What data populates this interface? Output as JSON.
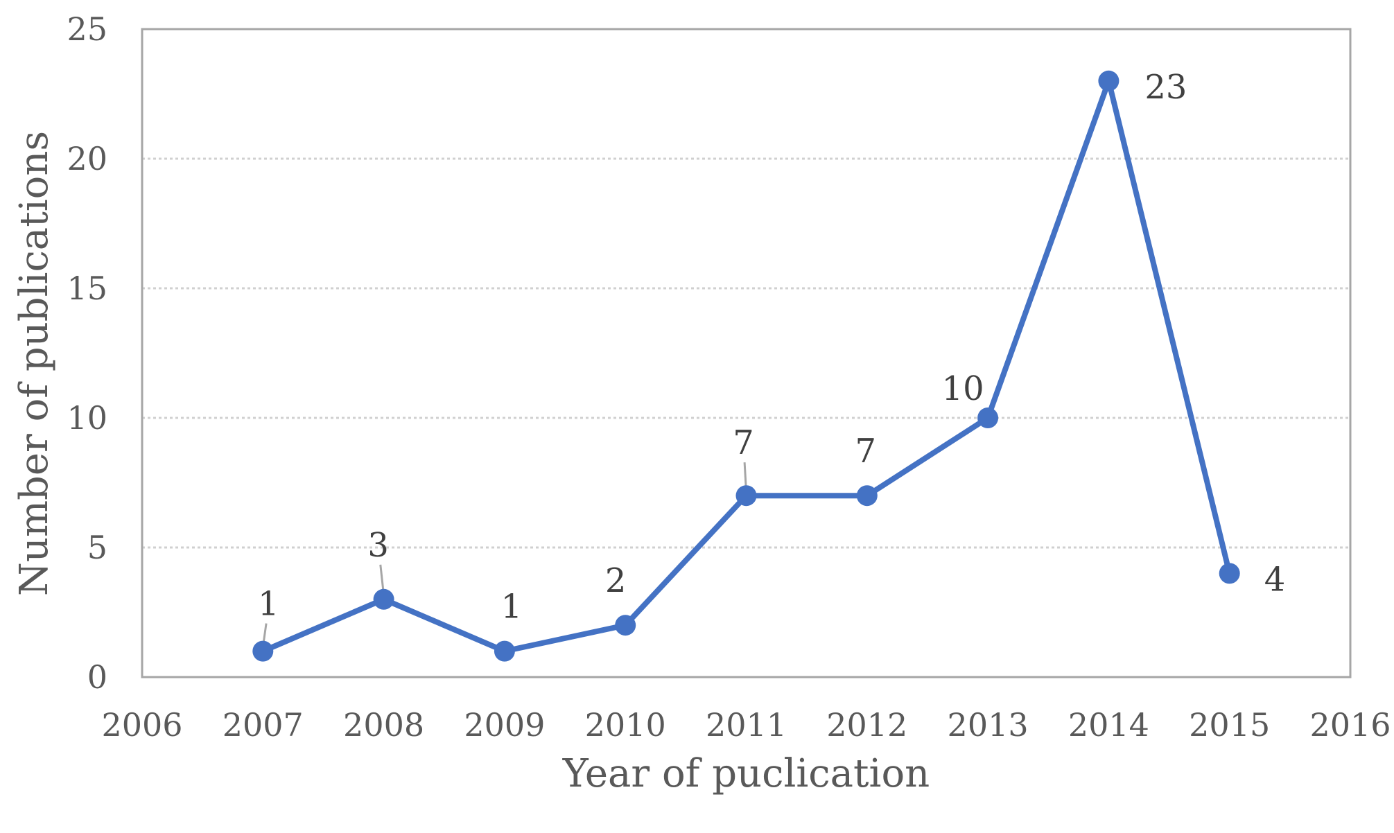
{
  "chart_data": {
    "type": "scatter",
    "mode": "lines+markers",
    "xlabel": "Year of puclication",
    "ylabel": "Number of publications",
    "xlim": [
      2006,
      2016
    ],
    "ylim": [
      0,
      25
    ],
    "x_ticks": [
      2006,
      2007,
      2008,
      2009,
      2010,
      2011,
      2012,
      2013,
      2014,
      2015,
      2016
    ],
    "y_ticks": [
      0,
      5,
      10,
      15,
      20,
      25
    ],
    "grid": "horizontal dotted",
    "legend": "none",
    "series": [
      {
        "x": [
          2007,
          2008,
          2009,
          2010,
          2011,
          2012,
          2013,
          2014,
          2015
        ],
        "y": [
          1,
          3,
          1,
          2,
          7,
          7,
          10,
          23,
          4
        ],
        "labels": [
          "1",
          "3",
          "1",
          "2",
          "7",
          "7",
          "10",
          "23",
          "4"
        ],
        "color": "#4472c4"
      }
    ]
  }
}
